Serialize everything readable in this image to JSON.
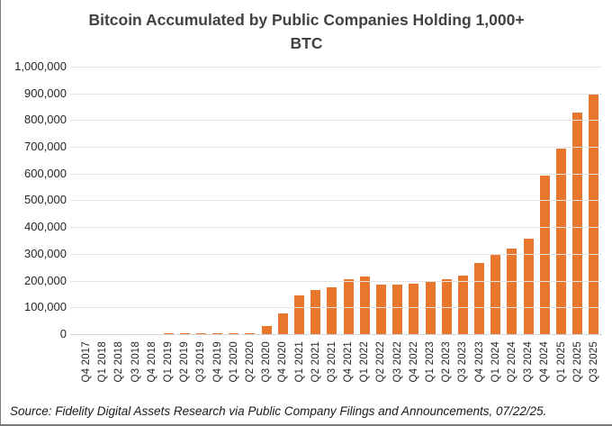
{
  "header": {
    "title_line1": "Bitcoin Accumulated by Public Companies Holding 1,000+",
    "title_line2": "BTC"
  },
  "chart_data": {
    "type": "bar",
    "title": "Bitcoin Accumulated by Public Companies Holding 1,000+ BTC",
    "categories": [
      "Q4 2017",
      "Q1 2018",
      "Q2 2018",
      "Q3 2018",
      "Q4 2018",
      "Q1 2019",
      "Q2 2019",
      "Q3 2019",
      "Q4 2019",
      "Q1 2020",
      "Q2 2020",
      "Q3 2020",
      "Q4 2020",
      "Q1 2021",
      "Q2 2021",
      "Q3 2021",
      "Q4 2021",
      "Q1 2022",
      "Q2 2022",
      "Q3 2022",
      "Q4 2022",
      "Q1 2023",
      "Q2 2023",
      "Q3 2023",
      "Q4 2023",
      "Q1 2024",
      "Q2 2024",
      "Q3 2024",
      "Q4 2024",
      "Q1 2025",
      "Q2 2025",
      "Q3 2025"
    ],
    "values": [
      2000,
      3000,
      4000,
      4500,
      5000,
      5500,
      6000,
      6000,
      6500,
      7000,
      8000,
      33000,
      80000,
      148000,
      167000,
      180000,
      210000,
      220000,
      188000,
      188000,
      193000,
      199000,
      209000,
      222000,
      268000,
      301000,
      323000,
      360000,
      595000,
      698000,
      831000,
      903000
    ],
    "xlabel": "",
    "ylabel": "",
    "ylim": [
      0,
      1000000
    ],
    "ytick_step": 100000,
    "grid": "horizontal",
    "legend": "none",
    "bar_color": "#E8772E"
  },
  "colors": {
    "bar": "#E8772E",
    "gridline": "#E4E4E4",
    "title_text": "#424242",
    "axis_text": "#262626"
  },
  "footer": {
    "source": "Source: Fidelity Digital Assets Research via Public Company Filings and Announcements, 07/22/25."
  }
}
